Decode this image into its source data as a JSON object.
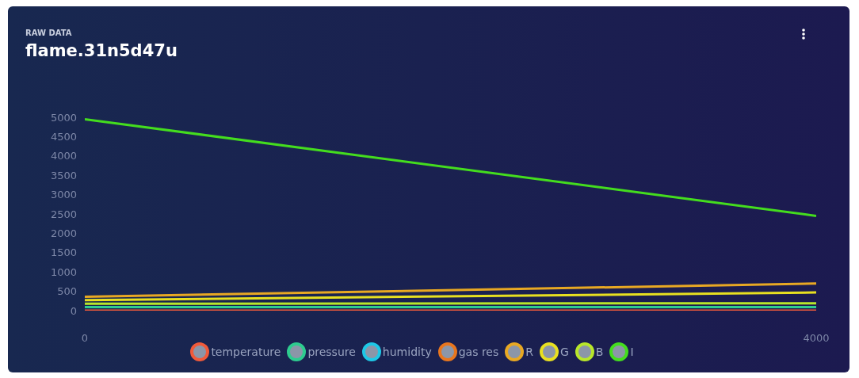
{
  "chart_data": {
    "type": "line",
    "subtitle": "RAW DATA",
    "title": "flame.31n5d47u",
    "x": [
      0,
      4000
    ],
    "xlim": [
      0,
      4000
    ],
    "xticks": [
      0,
      4000
    ],
    "ylim": [
      0,
      5000
    ],
    "yticks": [
      0,
      500,
      1000,
      1500,
      2000,
      2500,
      3000,
      3500,
      4000,
      4500,
      5000
    ],
    "grid": false,
    "marker": "none",
    "line_style": "solid",
    "legend": "bottom",
    "series": [
      {
        "name": "temperature",
        "color": "#f05a3a",
        "values": [
          0,
          0
        ]
      },
      {
        "name": "pressure",
        "color": "#2ecc8f",
        "values": [
          90,
          90
        ]
      },
      {
        "name": "humidity",
        "color": "#1ec8e6",
        "values": [
          null,
          null
        ]
      },
      {
        "name": "gas res",
        "color": "#e8761e",
        "values": [
          null,
          null
        ]
      },
      {
        "name": "R",
        "color": "#e8a823",
        "values": [
          360,
          700
        ]
      },
      {
        "name": "G",
        "color": "#e8e020",
        "values": [
          270,
          470
        ]
      },
      {
        "name": "B",
        "color": "#b8e62a",
        "values": [
          180,
          190
        ]
      },
      {
        "name": "I",
        "color": "#44dd1e",
        "values": [
          4950,
          2450
        ]
      }
    ]
  }
}
